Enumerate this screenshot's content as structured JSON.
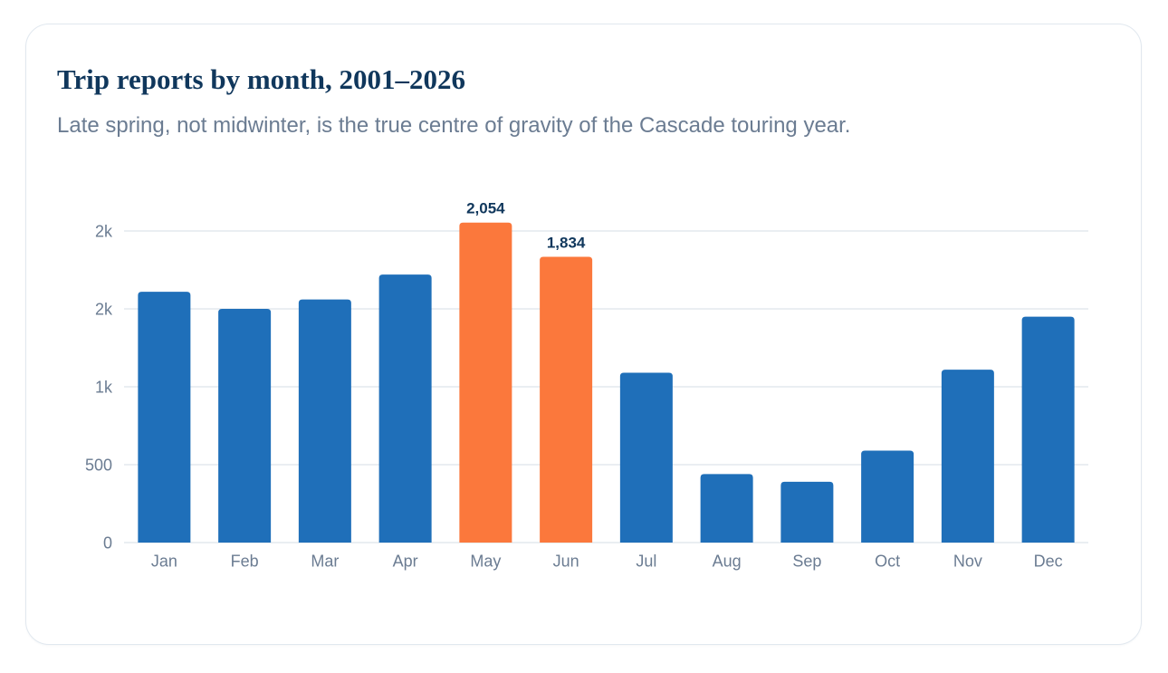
{
  "card": {
    "title": "Trip reports by month, 2001–2026",
    "subtitle": "Late spring, not midwinter, is the true centre of gravity of the Cascade touring year."
  },
  "chart_data": {
    "type": "bar",
    "title": "Trip reports by month, 2001–2026",
    "subtitle": "Late spring, not midwinter, is the true centre of gravity of the Cascade touring year.",
    "xlabel": "",
    "ylabel": "",
    "categories": [
      "Jan",
      "Feb",
      "Mar",
      "Apr",
      "May",
      "Jun",
      "Jul",
      "Aug",
      "Sep",
      "Oct",
      "Nov",
      "Dec"
    ],
    "values": [
      1610,
      1500,
      1560,
      1720,
      2054,
      1834,
      1090,
      440,
      390,
      590,
      1110,
      1450
    ],
    "highlighted": [
      "May",
      "Jun"
    ],
    "data_labels": [
      {
        "category": "May",
        "text": "2,054"
      },
      {
        "category": "Jun",
        "text": "1,834"
      }
    ],
    "yticks": [
      {
        "value": 0,
        "label": "0"
      },
      {
        "value": 500,
        "label": "500"
      },
      {
        "value": 1000,
        "label": "1k"
      },
      {
        "value": 1500,
        "label": "2k"
      },
      {
        "value": 2000,
        "label": "2k"
      }
    ],
    "ylim": [
      0,
      2000
    ],
    "grid": true,
    "legend": "none",
    "colors": {
      "bar": "#1f6fb9",
      "highlight": "#fb783c"
    }
  }
}
